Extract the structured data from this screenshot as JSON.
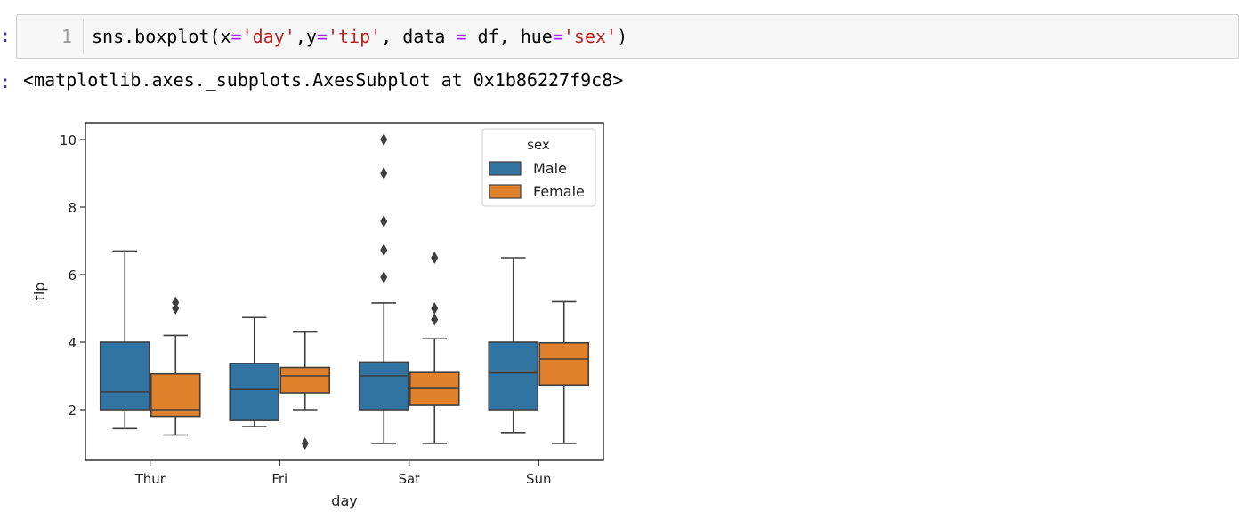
{
  "cell": {
    "input_prompt": ":",
    "output_prompt": ":",
    "line_number": "1",
    "code_tokens": [
      {
        "text": "sns.boxplot(x",
        "cls": ""
      },
      {
        "text": "=",
        "cls": "tok-eq"
      },
      {
        "text": "'day'",
        "cls": "tok-str"
      },
      {
        "text": ",y",
        "cls": ""
      },
      {
        "text": "=",
        "cls": "tok-eq"
      },
      {
        "text": "'tip'",
        "cls": "tok-str"
      },
      {
        "text": ", data ",
        "cls": ""
      },
      {
        "text": "=",
        "cls": "tok-eq"
      },
      {
        "text": " df, hue",
        "cls": ""
      },
      {
        "text": "=",
        "cls": "tok-eq"
      },
      {
        "text": "'sex'",
        "cls": "tok-str"
      },
      {
        "text": ")",
        "cls": ""
      }
    ],
    "output_text": "<matplotlib.axes._subplots.AxesSubplot at 0x1b86227f9c8>"
  },
  "chart_data": {
    "type": "box",
    "xlabel": "day",
    "ylabel": "tip",
    "ylim": [
      0.5,
      10.5
    ],
    "yticks": [
      2,
      4,
      6,
      8,
      10
    ],
    "categories": [
      "Thur",
      "Fri",
      "Sat",
      "Sun"
    ],
    "legend": {
      "title": "sex",
      "placement": "top-right"
    },
    "series": [
      {
        "name": "Male",
        "color": "#3274a1",
        "boxes": [
          {
            "whislo": 1.44,
            "q1": 2.0,
            "med": 2.53,
            "q3": 4.0,
            "whishi": 6.7,
            "fliers": []
          },
          {
            "whislo": 1.5,
            "q1": 1.68,
            "med": 2.6,
            "q3": 3.37,
            "whishi": 4.73,
            "fliers": []
          },
          {
            "whislo": 1.0,
            "q1": 2.0,
            "med": 3.0,
            "q3": 3.41,
            "whishi": 5.16,
            "fliers": [
              5.92,
              6.73,
              7.58,
              9.0,
              10.0
            ]
          },
          {
            "whislo": 1.32,
            "q1": 2.0,
            "med": 3.09,
            "q3": 4.0,
            "whishi": 6.5,
            "fliers": []
          }
        ]
      },
      {
        "name": "Female",
        "color": "#e1812c",
        "boxes": [
          {
            "whislo": 1.25,
            "q1": 1.8,
            "med": 2.0,
            "q3": 3.06,
            "whishi": 4.2,
            "fliers": [
              5.0,
              5.17
            ]
          },
          {
            "whislo": 2.0,
            "q1": 2.5,
            "med": 3.0,
            "q3": 3.25,
            "whishi": 4.3,
            "fliers": [
              1.0
            ]
          },
          {
            "whislo": 1.0,
            "q1": 2.13,
            "med": 2.63,
            "q3": 3.1,
            "whishi": 4.1,
            "fliers": [
              4.67,
              5.0,
              6.5
            ]
          },
          {
            "whislo": 1.0,
            "q1": 2.73,
            "med": 3.5,
            "q3": 3.98,
            "whishi": 5.2,
            "fliers": []
          }
        ]
      }
    ]
  }
}
